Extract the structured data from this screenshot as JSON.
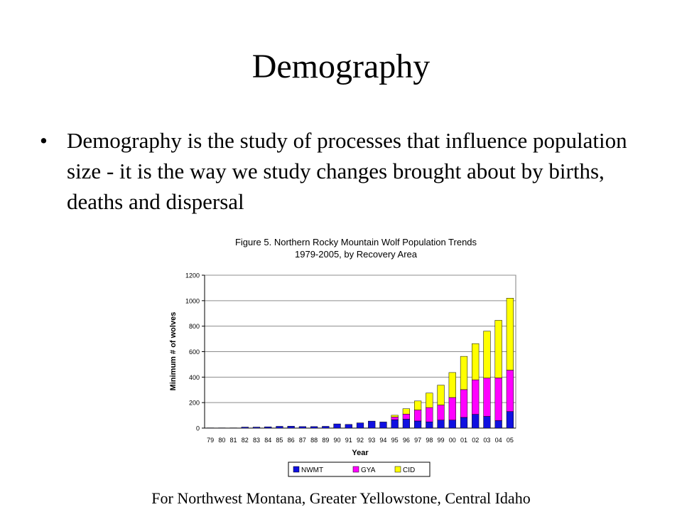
{
  "slide": {
    "title": "Demography",
    "bullet_symbol": "•",
    "bullet": "Demography is the study of processes that influence population size - it is the way we study changes brought about by births, deaths and dispersal",
    "footnote": "For Northwest Montana, Greater Yellowstone, Central Idaho"
  },
  "chart_data": {
    "type": "bar",
    "stacked": true,
    "title": "Figure 5.  Northern Rocky Mountain Wolf Population Trends",
    "subtitle": "1979-2005, by Recovery Area",
    "xlabel": "Year",
    "ylabel": "Minimum # of wolves",
    "ylim": [
      0,
      1200
    ],
    "yticks": [
      0,
      200,
      400,
      600,
      800,
      1000,
      1200
    ],
    "grid": true,
    "legend": "bottom",
    "categories": [
      "79",
      "80",
      "81",
      "82",
      "83",
      "84",
      "85",
      "86",
      "87",
      "88",
      "89",
      "90",
      "91",
      "92",
      "93",
      "94",
      "95",
      "96",
      "97",
      "98",
      "99",
      "00",
      "01",
      "02",
      "03",
      "04",
      "05"
    ],
    "series": [
      {
        "name": "NWMT",
        "color": "#1010e0",
        "values": [
          2,
          2,
          2,
          8,
          8,
          10,
          14,
          15,
          12,
          12,
          14,
          33,
          29,
          41,
          55,
          48,
          66,
          70,
          56,
          49,
          63,
          63,
          84,
          108,
          92,
          59,
          130
        ]
      },
      {
        "name": "GYA",
        "color": "#ff00ff",
        "values": [
          0,
          0,
          0,
          0,
          0,
          0,
          0,
          0,
          0,
          0,
          0,
          0,
          0,
          0,
          0,
          0,
          21,
          40,
          86,
          112,
          118,
          177,
          218,
          271,
          301,
          335,
          325
        ]
      },
      {
        "name": "CID",
        "color": "#ffff00",
        "values": [
          0,
          0,
          0,
          0,
          0,
          0,
          0,
          0,
          0,
          0,
          0,
          0,
          0,
          0,
          0,
          0,
          14,
          42,
          71,
          114,
          156,
          196,
          261,
          284,
          368,
          452,
          565
        ]
      }
    ]
  }
}
